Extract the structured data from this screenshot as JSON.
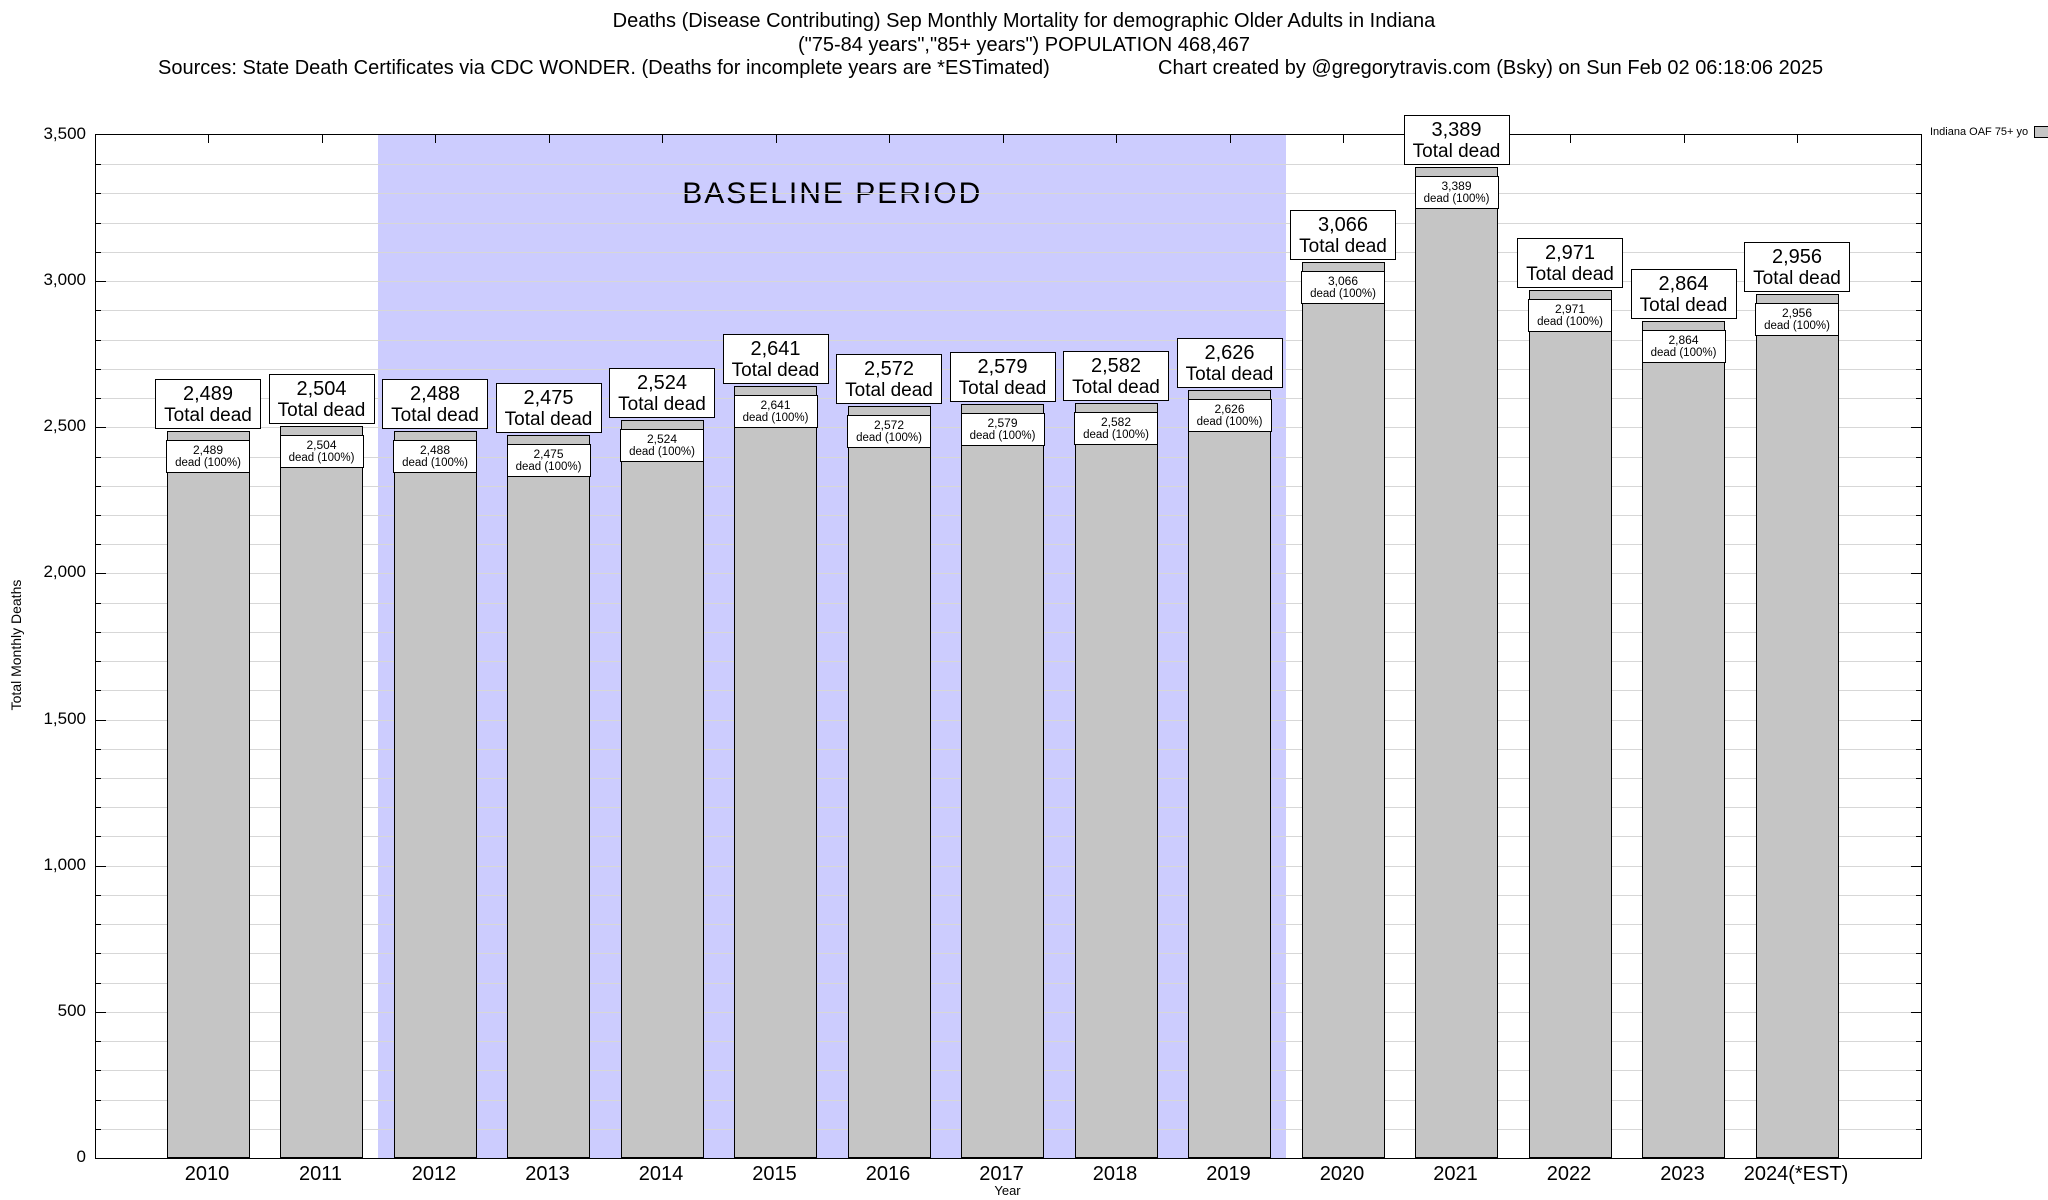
{
  "header": {
    "title_line1": "Deaths (Disease Contributing) Sep Monthly Mortality for demographic Older Adults in Indiana",
    "title_line2": "(\"75-84 years\",\"85+ years\") POPULATION 468,467",
    "sources_note": "Sources: State Death Certificates via CDC WONDER. (Deaths for incomplete years are *ESTimated)",
    "credit_note": "Chart created by @gregorytravis.com (Bsky) on Sun Feb 02 06:18:06 2025"
  },
  "chart_data": {
    "type": "bar",
    "title": "Deaths (Disease Contributing) Sep Monthly Mortality for demographic Older Adults in Indiana",
    "subtitle": "(\"75-84 years\",\"85+ years\") POPULATION 468,467",
    "xlabel": "Year",
    "ylabel": "Total Monthly Deaths",
    "ylim": [
      0,
      3500
    ],
    "ytick_interval": 500,
    "minor_gridline_interval": 100,
    "grid": true,
    "legend_label": "Indiana OAF 75+ yo",
    "legend_position": "top-right-outside",
    "bar_color": "#c5c5c5",
    "baseline_band_color": "#ccccfe",
    "baseline_label": "BASELINE PERIOD",
    "baseline_start_category": "2012",
    "baseline_end_category": "2019",
    "categories": [
      "2010",
      "2011",
      "2012",
      "2013",
      "2014",
      "2015",
      "2016",
      "2017",
      "2018",
      "2019",
      "2020",
      "2021",
      "2022",
      "2023",
      "2024(*EST)"
    ],
    "values": [
      2489,
      2504,
      2488,
      2475,
      2524,
      2641,
      2572,
      2579,
      2582,
      2626,
      3066,
      3389,
      2971,
      2864,
      2956
    ],
    "value_labels": [
      "2,489",
      "2,504",
      "2,488",
      "2,475",
      "2,524",
      "2,641",
      "2,572",
      "2,579",
      "2,582",
      "2,626",
      "3,066",
      "3,389",
      "2,971",
      "2,864",
      "2,956"
    ],
    "bar_top_label_line2": "Total dead",
    "bar_inner_label_line2": "dead (100%)"
  }
}
